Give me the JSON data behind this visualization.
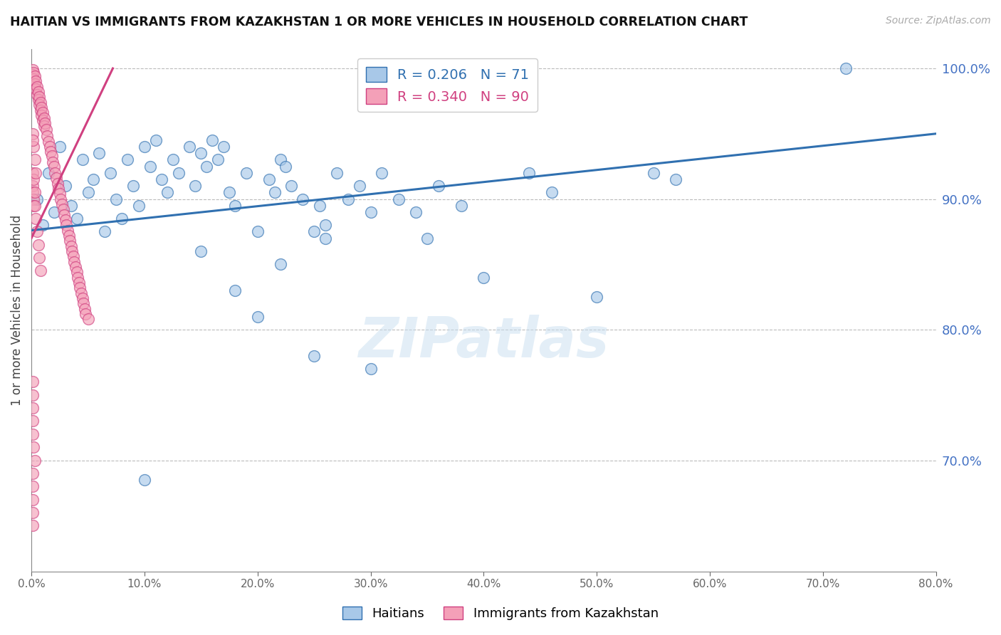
{
  "title": "HAITIAN VS IMMIGRANTS FROM KAZAKHSTAN 1 OR MORE VEHICLES IN HOUSEHOLD CORRELATION CHART",
  "source": "Source: ZipAtlas.com",
  "ylabel": "1 or more Vehicles in Household",
  "legend_labels": [
    "Haitians",
    "Immigrants from Kazakhstan"
  ],
  "blue_R": 0.206,
  "blue_N": 71,
  "pink_R": 0.34,
  "pink_N": 90,
  "blue_color": "#a8c8e8",
  "pink_color": "#f4a0b8",
  "blue_line_color": "#3070b0",
  "pink_line_color": "#d04080",
  "watermark": "ZIPatlas",
  "xmin": 0.0,
  "xmax": 0.8,
  "ymin": 0.615,
  "ymax": 1.015,
  "yticks": [
    0.7,
    0.8,
    0.9,
    1.0
  ],
  "xticks": [
    0.0,
    0.1,
    0.2,
    0.3,
    0.4,
    0.5,
    0.6,
    0.7,
    0.8
  ],
  "blue_x": [
    0.005,
    0.01,
    0.015,
    0.02,
    0.025,
    0.03,
    0.035,
    0.04,
    0.045,
    0.05,
    0.055,
    0.06,
    0.065,
    0.07,
    0.075,
    0.08,
    0.085,
    0.09,
    0.095,
    0.1,
    0.105,
    0.11,
    0.115,
    0.12,
    0.125,
    0.13,
    0.14,
    0.145,
    0.15,
    0.155,
    0.16,
    0.165,
    0.17,
    0.175,
    0.18,
    0.19,
    0.2,
    0.21,
    0.215,
    0.22,
    0.225,
    0.23,
    0.24,
    0.25,
    0.255,
    0.26,
    0.27,
    0.28,
    0.29,
    0.3,
    0.31,
    0.325,
    0.34,
    0.35,
    0.36,
    0.38,
    0.4,
    0.44,
    0.46,
    0.5,
    0.55,
    0.57,
    0.72,
    0.25,
    0.3,
    0.2,
    0.15,
    0.18,
    0.22,
    0.26,
    0.1
  ],
  "blue_y": [
    0.9,
    0.88,
    0.92,
    0.89,
    0.94,
    0.91,
    0.895,
    0.885,
    0.93,
    0.905,
    0.915,
    0.935,
    0.875,
    0.92,
    0.9,
    0.885,
    0.93,
    0.91,
    0.895,
    0.94,
    0.925,
    0.945,
    0.915,
    0.905,
    0.93,
    0.92,
    0.94,
    0.91,
    0.935,
    0.925,
    0.945,
    0.93,
    0.94,
    0.905,
    0.895,
    0.92,
    0.875,
    0.915,
    0.905,
    0.93,
    0.925,
    0.91,
    0.9,
    0.875,
    0.895,
    0.88,
    0.92,
    0.9,
    0.91,
    0.89,
    0.92,
    0.9,
    0.89,
    0.87,
    0.91,
    0.895,
    0.84,
    0.92,
    0.905,
    0.825,
    0.92,
    0.915,
    1.0,
    0.78,
    0.77,
    0.81,
    0.86,
    0.83,
    0.85,
    0.87,
    0.685
  ],
  "pink_x": [
    0.001,
    0.001,
    0.002,
    0.002,
    0.003,
    0.003,
    0.004,
    0.004,
    0.005,
    0.005,
    0.006,
    0.006,
    0.007,
    0.007,
    0.008,
    0.008,
    0.009,
    0.009,
    0.01,
    0.01,
    0.011,
    0.011,
    0.012,
    0.013,
    0.014,
    0.015,
    0.016,
    0.017,
    0.018,
    0.019,
    0.02,
    0.021,
    0.022,
    0.023,
    0.024,
    0.025,
    0.026,
    0.027,
    0.028,
    0.029,
    0.03,
    0.031,
    0.032,
    0.033,
    0.034,
    0.035,
    0.036,
    0.037,
    0.038,
    0.039,
    0.04,
    0.041,
    0.042,
    0.043,
    0.044,
    0.045,
    0.046,
    0.047,
    0.048,
    0.05,
    0.001,
    0.001,
    0.001,
    0.002,
    0.002,
    0.002,
    0.003,
    0.003,
    0.001,
    0.001,
    0.001,
    0.001,
    0.001,
    0.002,
    0.003,
    0.001,
    0.001,
    0.001,
    0.001,
    0.001,
    0.004,
    0.005,
    0.006,
    0.007,
    0.008,
    0.003,
    0.004,
    0.002,
    0.001,
    0.001
  ],
  "pink_y": [
    0.999,
    0.995,
    0.997,
    0.992,
    0.994,
    0.988,
    0.99,
    0.984,
    0.986,
    0.98,
    0.982,
    0.976,
    0.978,
    0.972,
    0.974,
    0.968,
    0.97,
    0.964,
    0.966,
    0.96,
    0.962,
    0.956,
    0.958,
    0.953,
    0.948,
    0.944,
    0.94,
    0.936,
    0.933,
    0.928,
    0.925,
    0.92,
    0.916,
    0.912,
    0.908,
    0.904,
    0.9,
    0.896,
    0.892,
    0.888,
    0.884,
    0.88,
    0.876,
    0.872,
    0.868,
    0.864,
    0.86,
    0.856,
    0.852,
    0.848,
    0.844,
    0.84,
    0.836,
    0.832,
    0.828,
    0.824,
    0.82,
    0.816,
    0.812,
    0.808,
    0.92,
    0.91,
    0.905,
    0.915,
    0.9,
    0.895,
    0.905,
    0.895,
    0.76,
    0.75,
    0.74,
    0.73,
    0.72,
    0.71,
    0.7,
    0.69,
    0.68,
    0.67,
    0.66,
    0.65,
    0.885,
    0.875,
    0.865,
    0.855,
    0.845,
    0.93,
    0.92,
    0.94,
    0.95,
    0.945
  ],
  "blue_trend_x": [
    0.0,
    0.8
  ],
  "blue_trend_y": [
    0.876,
    0.95
  ],
  "pink_trend_x": [
    0.0,
    0.072
  ],
  "pink_trend_y": [
    0.87,
    1.0
  ]
}
